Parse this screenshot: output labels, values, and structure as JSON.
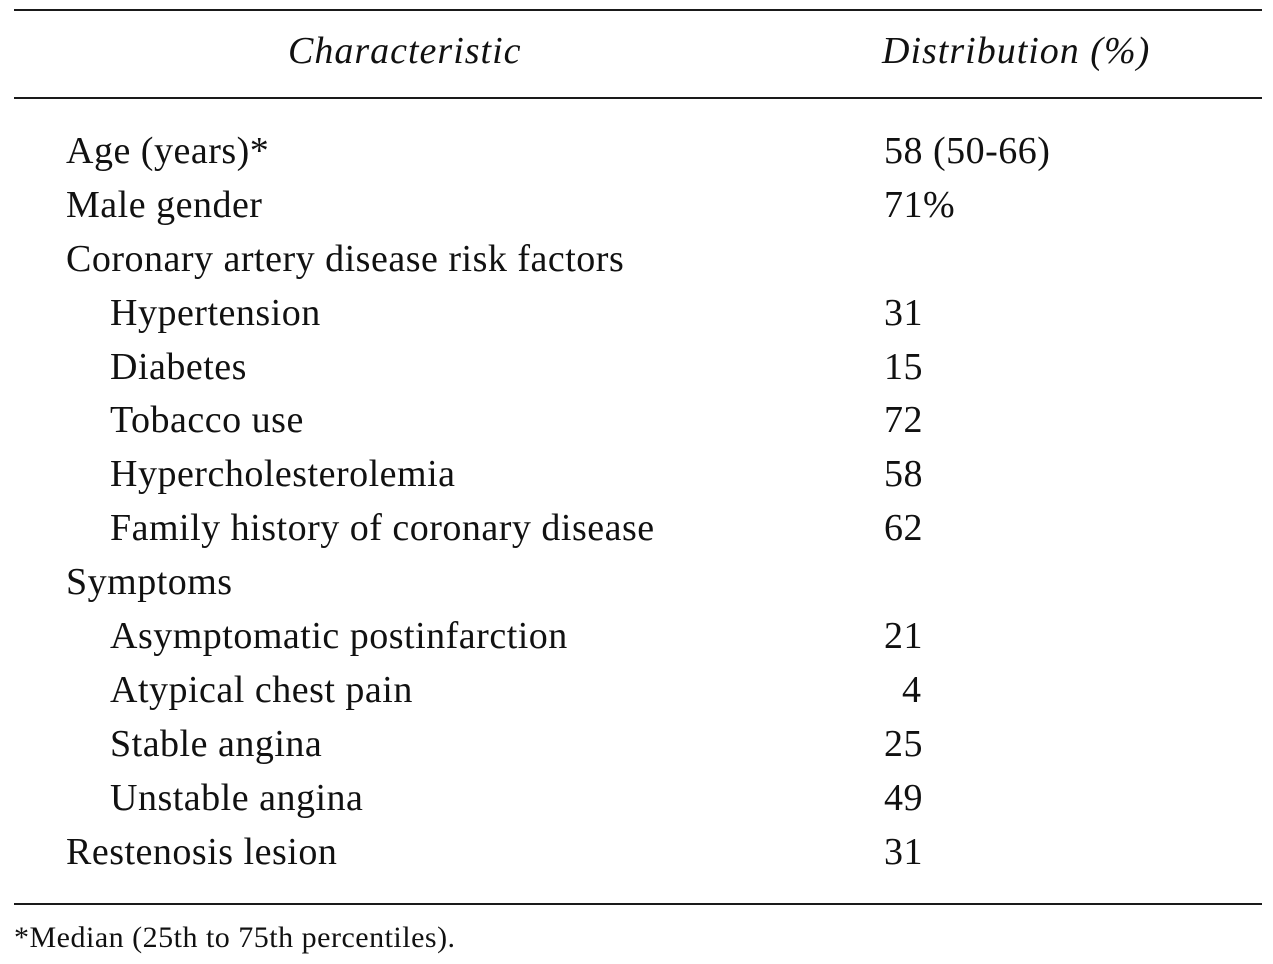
{
  "table": {
    "headers": {
      "characteristic": "Characteristic",
      "distribution": "Distribution (%)"
    },
    "rows": [
      {
        "label": "Age (years)*",
        "value": "58 (50-66)",
        "indent": false
      },
      {
        "label": "Male gender",
        "value": "71%",
        "indent": false
      },
      {
        "label": "Coronary artery disease risk factors",
        "value": "",
        "indent": false
      },
      {
        "label": "Hypertension",
        "value": "31",
        "indent": true
      },
      {
        "label": "Diabetes",
        "value": "15",
        "indent": true
      },
      {
        "label": "Tobacco use",
        "value": "72",
        "indent": true
      },
      {
        "label": "Hypercholesterolemia",
        "value": "58",
        "indent": true
      },
      {
        "label": "Family history of coronary disease",
        "value": "62",
        "indent": true
      },
      {
        "label": "Symptoms",
        "value": "",
        "indent": false
      },
      {
        "label": "Asymptomatic postinfarction",
        "value": "21",
        "indent": true
      },
      {
        "label": "Atypical chest pain",
        "value": "4",
        "indent": true
      },
      {
        "label": "Stable angina",
        "value": "25",
        "indent": true
      },
      {
        "label": "Unstable angina",
        "value": "49",
        "indent": true
      },
      {
        "label": "Restenosis lesion",
        "value": "31",
        "indent": false
      }
    ],
    "footnote": "*Median (25th to 75th percentiles)."
  }
}
